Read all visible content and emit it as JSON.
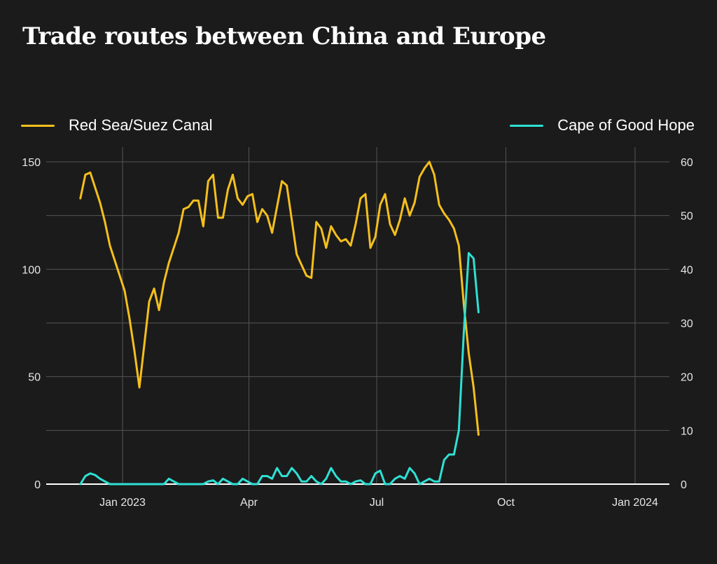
{
  "title": "Trade routes between China and Europe",
  "colors": {
    "background": "#1b1b1b",
    "series_red_sea": "#f5bf1c",
    "series_cape": "#2fe0d4",
    "grid": "#555555"
  },
  "chart_data": {
    "type": "line",
    "title": "Trade routes between China and Europe",
    "x_start": "2022-12-02",
    "x_step_days": 3.5,
    "x_tick_labels": [
      "Jan 2023",
      "Apr",
      "Jul",
      "Oct",
      "Jan 2024"
    ],
    "x_tick_dates": [
      "2023-01-01",
      "2023-04-01",
      "2023-07-01",
      "2023-10-01",
      "2024-01-01"
    ],
    "y_left_ticks": [
      "0",
      "50",
      "100",
      "150"
    ],
    "y_right_ticks": [
      "0",
      "10",
      "20",
      "30",
      "40",
      "50",
      "60"
    ],
    "ylim_left": [
      0,
      150
    ],
    "ylim_right": [
      0,
      60
    ],
    "series": [
      {
        "name": "Red Sea/Suez Canal",
        "axis": "left",
        "values": [
          133,
          144,
          145,
          138,
          131,
          122,
          111,
          104,
          97,
          90,
          77,
          62,
          45,
          65,
          85,
          91,
          81,
          94,
          103,
          110,
          117,
          128,
          129,
          132,
          132,
          120,
          141,
          144,
          124,
          124,
          137,
          144,
          133,
          130,
          134,
          135,
          122,
          128,
          125,
          117,
          129,
          141,
          139,
          123,
          107,
          102,
          97,
          96,
          122,
          119,
          110,
          120,
          116,
          113,
          114,
          111,
          121,
          133,
          135,
          110,
          115,
          130,
          135,
          121,
          116,
          123,
          133,
          125,
          131,
          143,
          147,
          150,
          144,
          130,
          126,
          123,
          119,
          111,
          84,
          61,
          45,
          23
        ]
      },
      {
        "name": "Cape of Good Hope",
        "axis": "right",
        "values": [
          0,
          1.5,
          2,
          1.7,
          1,
          0.5,
          0,
          0,
          0,
          0,
          0,
          0,
          0,
          0,
          0,
          0,
          0,
          0,
          1,
          0.5,
          0,
          0,
          0,
          0,
          0,
          0,
          0.5,
          0.7,
          0,
          1,
          0.5,
          0,
          0,
          1,
          0.5,
          0,
          0,
          1.5,
          1.5,
          1,
          3,
          1.5,
          1.5,
          3,
          2,
          0.5,
          0.5,
          1.5,
          0.5,
          0,
          1,
          3,
          1.5,
          0.5,
          0.5,
          0,
          0.5,
          0.7,
          0,
          0,
          2,
          2.5,
          0,
          0,
          1,
          1.5,
          1,
          3,
          2,
          0,
          0.5,
          1,
          0.5,
          0.5,
          4.5,
          5.5,
          5.5,
          10,
          28,
          43,
          42,
          32
        ]
      }
    ],
    "legend_position": "top"
  }
}
